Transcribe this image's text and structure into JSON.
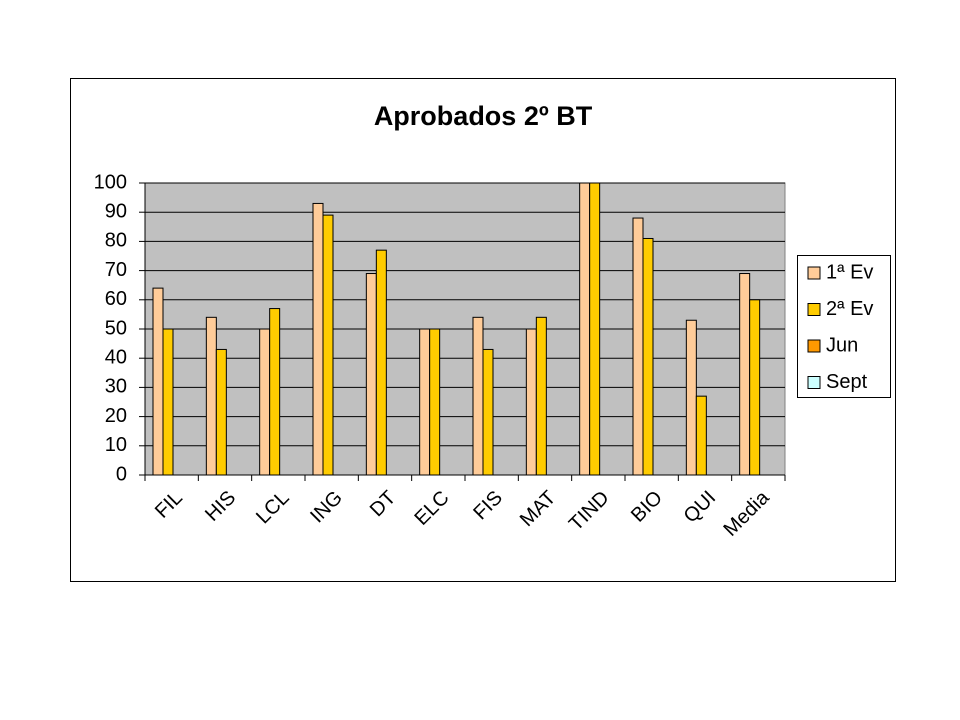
{
  "chart_data": {
    "type": "bar",
    "title": "Aprobados 2º BT",
    "categories": [
      "FIL",
      "HIS",
      "LCL",
      "ING",
      "DT",
      "ELC",
      "FIS",
      "MAT",
      "TIND",
      "BIO",
      "QUI",
      "Media"
    ],
    "series": [
      {
        "name": "1ª Ev",
        "color": "#FFCC99",
        "values": [
          64,
          54,
          50,
          93,
          69,
          50,
          54,
          50,
          100,
          88,
          53,
          69
        ]
      },
      {
        "name": "2ª Ev",
        "color": "#FFCC00",
        "values": [
          50,
          43,
          57,
          89,
          77,
          50,
          43,
          54,
          100,
          81,
          27,
          60
        ]
      },
      {
        "name": "Jun",
        "color": "#FF9900",
        "values": [
          null,
          null,
          null,
          null,
          null,
          null,
          null,
          null,
          null,
          null,
          null,
          null
        ]
      },
      {
        "name": "Sept",
        "color": "#CCFFFF",
        "values": [
          null,
          null,
          null,
          null,
          null,
          null,
          null,
          null,
          null,
          null,
          null,
          null
        ]
      }
    ],
    "ylim": [
      0,
      100
    ],
    "yticks": [
      0,
      10,
      20,
      30,
      40,
      50,
      60,
      70,
      80,
      90,
      100
    ],
    "grid": true,
    "legend": "right",
    "plot_background": "#C0C0C0"
  }
}
